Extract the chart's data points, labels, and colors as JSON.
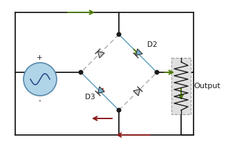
{
  "bg_color": "#ffffff",
  "wire_color": "#1a1a1a",
  "active_diode_color": "#7ab0cc",
  "inactive_diode_color": "#cccccc",
  "active_arrow_color": "#4a7a00",
  "return_arrow_color": "#8b1a1a",
  "source_color": "#b0d4e8",
  "source_edge": "#5588aa",
  "resistor_bg": "#e0e0e0",
  "resistor_edge": "#999999",
  "label_d2": "D2",
  "label_d3": "D3",
  "label_output": "Output",
  "label_plus": "+",
  "label_minus": "-",
  "figsize": [
    3.53,
    2.12
  ],
  "dpi": 100
}
